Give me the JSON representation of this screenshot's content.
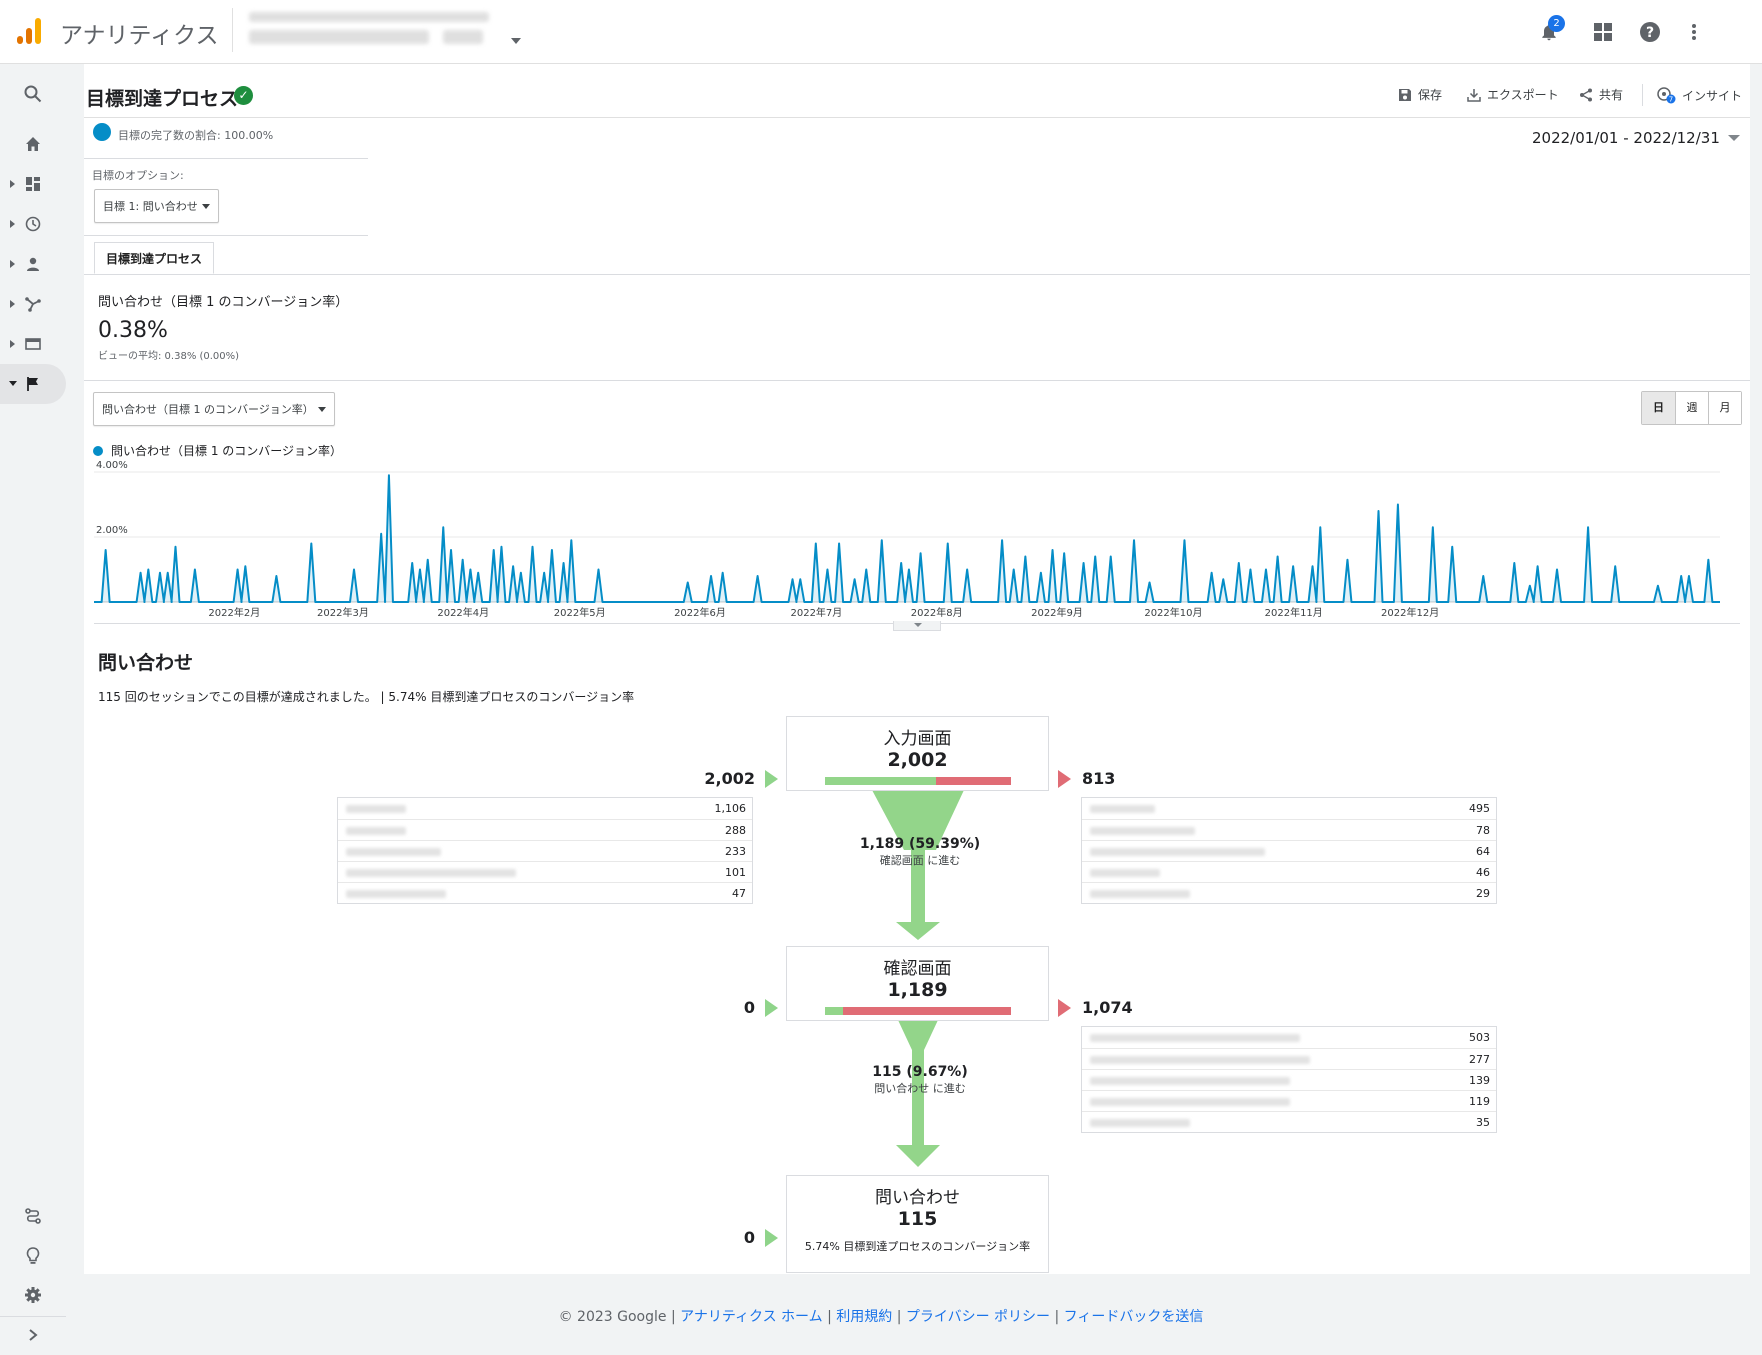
{
  "app": {
    "title": "アナリティクス",
    "notification_count": "2"
  },
  "page": {
    "title": "目標到達プロセス"
  },
  "actions": {
    "save": "保存",
    "export": "エクスポート",
    "share": "共有",
    "insight": "インサイト"
  },
  "segment": {
    "label": "目標の完了数の割合: 100.00%",
    "color": "#058dc7"
  },
  "date_range": "2022/01/01 - 2022/12/31",
  "goal_option": {
    "label": "目標のオプション:",
    "selected": "目標 1: 問い合わせ"
  },
  "tab": "目標到達プロセス",
  "metric": {
    "title": "問い合わせ（目標 1 のコンバージョン率）",
    "value": "0.38%",
    "average": "ビューの平均: 0.38% (0.00%)"
  },
  "chart_select": "問い合わせ（目標 1 のコンバージョン率）",
  "granularity": [
    "日",
    "週",
    "月"
  ],
  "chart_data": {
    "type": "area",
    "series": [
      {
        "name": "問い合わせ（目標 1 のコンバージョン率）",
        "color": "#058dc7"
      }
    ],
    "y_ticks": [
      "4.00%",
      "2.00%"
    ],
    "x_ticks": [
      "2022年2月",
      "2022年3月",
      "2022年4月",
      "2022年5月",
      "2022年6月",
      "2022年7月",
      "2022年8月",
      "2022年9月",
      "2022年10月",
      "2022年11月",
      "2022年12月"
    ],
    "ylim": [
      0,
      4.0
    ],
    "y_unit": "%",
    "x_range": [
      "2022-01-01",
      "2022-12-31"
    ],
    "spikes": [
      {
        "x": "2022-01-04",
        "y": 1.6
      },
      {
        "x": "2022-01-13",
        "y": 0.9
      },
      {
        "x": "2022-01-15",
        "y": 1.0
      },
      {
        "x": "2022-01-18",
        "y": 0.9
      },
      {
        "x": "2022-01-20",
        "y": 0.9
      },
      {
        "x": "2022-01-22",
        "y": 1.7
      },
      {
        "x": "2022-01-27",
        "y": 1.0
      },
      {
        "x": "2022-02-07",
        "y": 1.0
      },
      {
        "x": "2022-02-09",
        "y": 1.1
      },
      {
        "x": "2022-02-17",
        "y": 0.8
      },
      {
        "x": "2022-02-26",
        "y": 1.8
      },
      {
        "x": "2022-03-09",
        "y": 1.0
      },
      {
        "x": "2022-03-16",
        "y": 2.1
      },
      {
        "x": "2022-03-18",
        "y": 3.9
      },
      {
        "x": "2022-03-24",
        "y": 1.2
      },
      {
        "x": "2022-03-26",
        "y": 1.0
      },
      {
        "x": "2022-03-28",
        "y": 1.3
      },
      {
        "x": "2022-04-01",
        "y": 2.3
      },
      {
        "x": "2022-04-03",
        "y": 1.6
      },
      {
        "x": "2022-04-06",
        "y": 1.3
      },
      {
        "x": "2022-04-08",
        "y": 1.0
      },
      {
        "x": "2022-04-10",
        "y": 0.9
      },
      {
        "x": "2022-04-14",
        "y": 1.6
      },
      {
        "x": "2022-04-16",
        "y": 1.7
      },
      {
        "x": "2022-04-19",
        "y": 1.1
      },
      {
        "x": "2022-04-21",
        "y": 0.9
      },
      {
        "x": "2022-04-24",
        "y": 1.7
      },
      {
        "x": "2022-04-27",
        "y": 0.9
      },
      {
        "x": "2022-04-29",
        "y": 1.6
      },
      {
        "x": "2022-05-02",
        "y": 1.2
      },
      {
        "x": "2022-05-04",
        "y": 1.9
      },
      {
        "x": "2022-05-11",
        "y": 1.0
      },
      {
        "x": "2022-06-03",
        "y": 0.6
      },
      {
        "x": "2022-06-09",
        "y": 0.8
      },
      {
        "x": "2022-06-12",
        "y": 0.9
      },
      {
        "x": "2022-06-21",
        "y": 0.8
      },
      {
        "x": "2022-06-30",
        "y": 0.7
      },
      {
        "x": "2022-07-02",
        "y": 0.7
      },
      {
        "x": "2022-07-06",
        "y": 1.8
      },
      {
        "x": "2022-07-09",
        "y": 1.0
      },
      {
        "x": "2022-07-12",
        "y": 1.8
      },
      {
        "x": "2022-07-16",
        "y": 0.7
      },
      {
        "x": "2022-07-19",
        "y": 1.0
      },
      {
        "x": "2022-07-23",
        "y": 1.9
      },
      {
        "x": "2022-07-28",
        "y": 1.2
      },
      {
        "x": "2022-07-30",
        "y": 1.0
      },
      {
        "x": "2022-08-02",
        "y": 1.5
      },
      {
        "x": "2022-08-09",
        "y": 1.8
      },
      {
        "x": "2022-08-14",
        "y": 1.0
      },
      {
        "x": "2022-08-23",
        "y": 1.9
      },
      {
        "x": "2022-08-26",
        "y": 1.0
      },
      {
        "x": "2022-08-29",
        "y": 1.4
      },
      {
        "x": "2022-09-02",
        "y": 0.9
      },
      {
        "x": "2022-09-05",
        "y": 1.6
      },
      {
        "x": "2022-09-08",
        "y": 1.5
      },
      {
        "x": "2022-09-13",
        "y": 1.2
      },
      {
        "x": "2022-09-16",
        "y": 1.4
      },
      {
        "x": "2022-09-20",
        "y": 1.4
      },
      {
        "x": "2022-09-26",
        "y": 1.9
      },
      {
        "x": "2022-09-30",
        "y": 0.6
      },
      {
        "x": "2022-10-09",
        "y": 1.9
      },
      {
        "x": "2022-10-16",
        "y": 0.9
      },
      {
        "x": "2022-10-19",
        "y": 0.7
      },
      {
        "x": "2022-10-23",
        "y": 1.2
      },
      {
        "x": "2022-10-26",
        "y": 1.0
      },
      {
        "x": "2022-10-30",
        "y": 1.0
      },
      {
        "x": "2022-11-02",
        "y": 1.4
      },
      {
        "x": "2022-11-06",
        "y": 1.1
      },
      {
        "x": "2022-11-11",
        "y": 1.1
      },
      {
        "x": "2022-11-13",
        "y": 2.3
      },
      {
        "x": "2022-11-20",
        "y": 1.3
      },
      {
        "x": "2022-11-28",
        "y": 2.8
      },
      {
        "x": "2022-12-03",
        "y": 3.0
      },
      {
        "x": "2022-12-12",
        "y": 2.3
      },
      {
        "x": "2022-12-17",
        "y": 1.7
      },
      {
        "x": "2022-12-25",
        "y": 0.8
      },
      {
        "x": "2023-01-02",
        "y": 1.2
      },
      {
        "x": "2023-01-06",
        "y": 0.5
      },
      {
        "x": "2023-01-08",
        "y": 1.1
      },
      {
        "x": "2023-01-13",
        "y": 1.0
      },
      {
        "x": "2023-01-21",
        "y": 2.3
      },
      {
        "x": "2023-01-28",
        "y": 1.1
      },
      {
        "x": "2023-02-08",
        "y": 0.5
      },
      {
        "x": "2023-02-14",
        "y": 0.8
      },
      {
        "x": "2023-02-16",
        "y": 0.8
      },
      {
        "x": "2023-02-21",
        "y": 1.3
      }
    ]
  },
  "funnel": {
    "title": "問い合わせ",
    "summary": "115 回のセッションでこの目標が達成されました。 | 5.74% 目標到達プロセスのコンバージョン率",
    "steps": [
      {
        "label": "入力画面",
        "value": "2,002",
        "entries": "2,002",
        "exits": "813",
        "continue_ratio": 0.594,
        "entry_rows": [
          "1,106",
          "288",
          "233",
          "101",
          "47"
        ],
        "exit_rows": [
          "495",
          "78",
          "64",
          "46",
          "29"
        ]
      },
      {
        "label": "確認画面",
        "value": "1,189",
        "entries": "0",
        "exits": "1,074",
        "continue_ratio": 0.097,
        "exit_rows": [
          "503",
          "277",
          "139",
          "119",
          "35"
        ]
      },
      {
        "label": "問い合わせ",
        "value": "115",
        "entries": "0",
        "note": "5.74% 目標到達プロセスのコンバージョン率"
      }
    ],
    "transitions": [
      {
        "value": "1,189 (59.39%)",
        "label": "確認画面 に進む"
      },
      {
        "value": "115 (9.67%)",
        "label": "問い合わせ に進む"
      }
    ]
  },
  "footer": {
    "copyright": "© 2023 Google",
    "links": [
      "アナリティクス ホーム",
      "利用規約",
      "プライバシー ポリシー",
      "フィードバックを送信"
    ]
  },
  "colors": {
    "accent": "#1a73e8",
    "green": "#93d58a",
    "red": "#e06c75",
    "series": "#058dc7"
  }
}
